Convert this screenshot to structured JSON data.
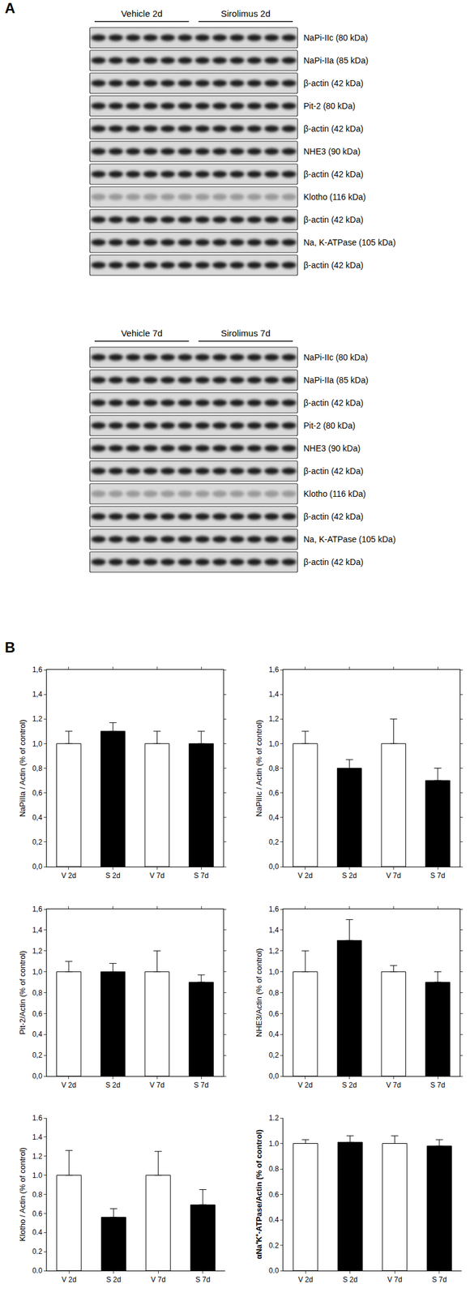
{
  "panel_labels": [
    "A",
    "B"
  ],
  "blots": [
    {
      "headers": [
        "Vehicle 2d",
        "Sirolimus 2d"
      ],
      "rows": [
        "NaPi-IIc (80 kDa)",
        "NaPi-IIa (85 kDa)",
        "β-actin (42 kDa)",
        "Pit-2 (80 kDa)",
        "β-actin (42 kDa)",
        "NHE3 (90 kDa)",
        "β-actin (42 kDa)",
        "Klotho (116 kDa)",
        "β-actin (42 kDa)",
        "Na, K-ATPase (105 kDa)",
        "β-actin (42 kDa)"
      ]
    },
    {
      "headers": [
        "Vehicle 7d",
        "Sirolimus 7d"
      ],
      "rows": [
        "NaPi-IIc (80 kDa)",
        "NaPi-IIa (85 kDa)",
        "β-actin (42 kDa)",
        "Pit-2 (80 kDa)",
        "NHE3 (90 kDa)",
        "β-actin (42 kDa)",
        "Klotho (116 kDa)",
        "β-actin (42 kDa)",
        "Na, K-ATPase (105 kDa)",
        "β-actin (42 kDa)"
      ]
    }
  ],
  "chart_data": [
    {
      "type": "bar",
      "y_label": "NaPiIIa / Actin (% of control)",
      "categories": [
        "V 2d",
        "S 2d",
        "V 7d",
        "S 7d"
      ],
      "values": [
        1.0,
        1.1,
        1.0,
        1.0
      ],
      "errors": [
        0.1,
        0.07,
        0.1,
        0.1
      ],
      "colors": [
        "#ffffff",
        "#000000",
        "#ffffff",
        "#000000"
      ],
      "ylim": [
        0,
        1.6
      ],
      "yticks": [
        {
          "value": 0,
          "label": "0,0"
        },
        {
          "value": 0.2,
          "label": "0,2"
        },
        {
          "value": 0.4,
          "label": "0,4"
        },
        {
          "value": 0.6,
          "label": "0,6"
        },
        {
          "value": 0.8,
          "label": "0,8"
        },
        {
          "value": 1.0,
          "label": "1,0"
        },
        {
          "value": 1.2,
          "label": "1,2"
        },
        {
          "value": 1.4,
          "label": "1,4"
        },
        {
          "value": 1.6,
          "label": "1,6"
        }
      ]
    },
    {
      "type": "bar",
      "y_label": "NaPiIIc / Actin (% of control)",
      "categories": [
        "V 2d",
        "S 2d",
        "V 7d",
        "S 7d"
      ],
      "values": [
        1.0,
        0.8,
        1.0,
        0.7
      ],
      "errors": [
        0.1,
        0.07,
        0.2,
        0.1
      ],
      "colors": [
        "#ffffff",
        "#000000",
        "#ffffff",
        "#000000"
      ],
      "ylim": [
        0,
        1.6
      ],
      "yticks": [
        {
          "value": 0,
          "label": "0,0"
        },
        {
          "value": 0.2,
          "label": "0,2"
        },
        {
          "value": 0.4,
          "label": "0,4"
        },
        {
          "value": 0.6,
          "label": "0,6"
        },
        {
          "value": 0.8,
          "label": "0,8"
        },
        {
          "value": 1.0,
          "label": "1,0"
        },
        {
          "value": 1.2,
          "label": "1,2"
        },
        {
          "value": 1.4,
          "label": "1,4"
        },
        {
          "value": 1.6,
          "label": "1,6"
        }
      ]
    },
    {
      "type": "bar",
      "y_label": "Pit-2/Actin (% of control)",
      "categories": [
        "V 2d",
        "S 2d",
        "V 7d",
        "S 7d"
      ],
      "values": [
        1.0,
        1.0,
        1.0,
        0.9
      ],
      "errors": [
        0.1,
        0.08,
        0.2,
        0.07
      ],
      "colors": [
        "#ffffff",
        "#000000",
        "#ffffff",
        "#000000"
      ],
      "ylim": [
        0,
        1.6
      ],
      "yticks": [
        {
          "value": 0,
          "label": "0,0"
        },
        {
          "value": 0.2,
          "label": "0,2"
        },
        {
          "value": 0.4,
          "label": "0,4"
        },
        {
          "value": 0.6,
          "label": "0,6"
        },
        {
          "value": 0.8,
          "label": "0,8"
        },
        {
          "value": 1.0,
          "label": "1,0"
        },
        {
          "value": 1.2,
          "label": "1,2"
        },
        {
          "value": 1.4,
          "label": "1,4"
        },
        {
          "value": 1.6,
          "label": "1,6"
        }
      ]
    },
    {
      "type": "bar",
      "y_label": "NHE3/Actin (% of control)",
      "categories": [
        "V 2d",
        "S 2d",
        "V 7d",
        "S 7d"
      ],
      "values": [
        1.0,
        1.3,
        1.0,
        0.9
      ],
      "errors": [
        0.2,
        0.2,
        0.06,
        0.1
      ],
      "colors": [
        "#ffffff",
        "#000000",
        "#ffffff",
        "#000000"
      ],
      "ylim": [
        0,
        1.6
      ],
      "yticks": [
        {
          "value": 0,
          "label": "0,0"
        },
        {
          "value": 0.2,
          "label": "0,2"
        },
        {
          "value": 0.4,
          "label": "0,4"
        },
        {
          "value": 0.6,
          "label": "0,6"
        },
        {
          "value": 0.8,
          "label": "0,8"
        },
        {
          "value": 1.0,
          "label": "1,0"
        },
        {
          "value": 1.2,
          "label": "1,2"
        },
        {
          "value": 1.4,
          "label": "1,4"
        },
        {
          "value": 1.6,
          "label": "1,6"
        }
      ]
    },
    {
      "type": "bar",
      "y_label": "Klotho / Actin (% of control)",
      "categories": [
        "V 2d",
        "S 2d",
        "V 7d",
        "S 7d"
      ],
      "values": [
        1.0,
        0.56,
        1.0,
        0.69
      ],
      "errors": [
        0.26,
        0.09,
        0.25,
        0.16
      ],
      "colors": [
        "#ffffff",
        "#000000",
        "#ffffff",
        "#000000"
      ],
      "ylim": [
        0,
        1.6
      ],
      "yticks": [
        {
          "value": 0,
          "label": "0.0"
        },
        {
          "value": 0.2,
          "label": "0.2"
        },
        {
          "value": 0.4,
          "label": "0.4"
        },
        {
          "value": 0.6,
          "label": "0.6"
        },
        {
          "value": 0.8,
          "label": "0.8"
        },
        {
          "value": 1.0,
          "label": "1.0"
        },
        {
          "value": 1.2,
          "label": "1.2"
        },
        {
          "value": 1.4,
          "label": "1.4"
        },
        {
          "value": 1.6,
          "label": "1.6"
        }
      ]
    },
    {
      "type": "bar",
      "y_label": "αNa⁺K⁺-ATPase/Actin (% of control)",
      "categories": [
        "V 2d",
        "S 2d",
        "V 7d",
        "S 7d"
      ],
      "values": [
        1.0,
        1.01,
        1.0,
        0.98
      ],
      "errors": [
        0.03,
        0.05,
        0.06,
        0.05
      ],
      "colors": [
        "#ffffff",
        "#000000",
        "#ffffff",
        "#000000"
      ],
      "ylim": [
        0,
        1.2
      ],
      "yticks": [
        {
          "value": 0,
          "label": "0.0"
        },
        {
          "value": 0.2,
          "label": "0.2"
        },
        {
          "value": 0.4,
          "label": "0.4"
        },
        {
          "value": 0.6,
          "label": "0.6"
        },
        {
          "value": 0.8,
          "label": "0.8"
        },
        {
          "value": 1.0,
          "label": "1.0"
        },
        {
          "value": 1.2,
          "label": "1.2"
        }
      ]
    }
  ]
}
